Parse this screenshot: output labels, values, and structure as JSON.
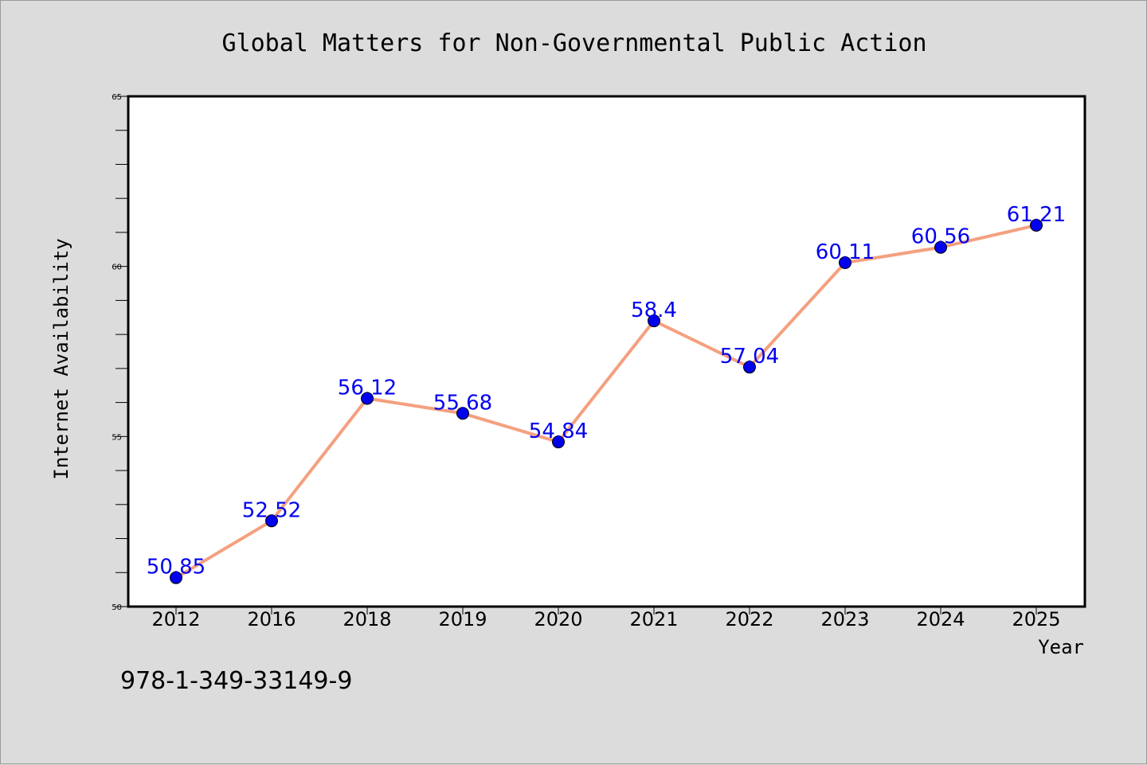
{
  "chart_data": {
    "type": "line",
    "title": "Global Matters for Non-Governmental Public Action",
    "xlabel": "Year",
    "ylabel": "Internet Availability",
    "categories": [
      "2012",
      "2016",
      "2018",
      "2019",
      "2020",
      "2021",
      "2022",
      "2023",
      "2024",
      "2025"
    ],
    "series": [
      {
        "values": [
          50.85,
          52.52,
          56.12,
          55.68,
          54.84,
          58.4,
          57.04,
          60.11,
          60.56,
          61.21
        ],
        "data_labels": [
          "50.85",
          "52.52",
          "56.12",
          "55.68",
          "54.84",
          "58.4",
          "57.04",
          "60.11",
          "60.56",
          "61.21"
        ],
        "line_color": "#f4a07f",
        "marker_color": "#0000ee"
      }
    ],
    "ylim": [
      50,
      65
    ],
    "y_major_ticks": [
      50,
      55,
      60,
      65
    ],
    "y_tick_labels": [
      "50",
      "55",
      "60",
      "65"
    ],
    "y_minor_step": 1,
    "grid": false,
    "legend": "none"
  },
  "annotation": {
    "isbn": "978-1-349-33149-9"
  },
  "colors": {
    "background": "#dcdcdc",
    "plot_area": "#ffffff",
    "label_color": "#0000ee"
  }
}
